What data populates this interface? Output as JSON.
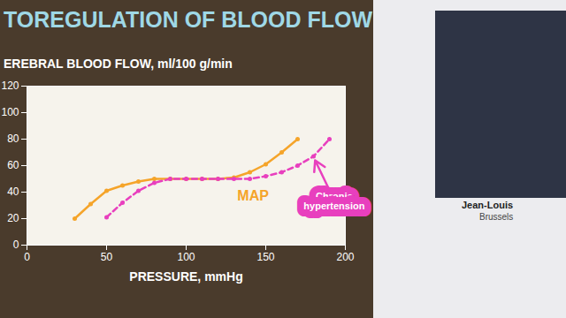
{
  "chart_data": {
    "type": "line",
    "title": "TOREGULATION OF BLOOD FLOW",
    "subtitle": "EREBRAL BLOOD FLOW, ml/100 g/min",
    "xlabel": "PRESSURE, mmHg",
    "xlim": [
      0,
      200
    ],
    "xticks": [
      0,
      50,
      100,
      150,
      200
    ],
    "ylim": [
      0,
      120
    ],
    "yticks": [
      0,
      20,
      40,
      60,
      80,
      100,
      120
    ],
    "grid": false,
    "series": [
      {
        "name": "MAP",
        "color": "#f5a42a",
        "marker": "circle",
        "line_style": "solid",
        "x": [
          30,
          40,
          50,
          60,
          70,
          80,
          90,
          100,
          110,
          120,
          130,
          140,
          150,
          160,
          170
        ],
        "values": [
          20,
          31,
          41,
          45,
          48,
          50,
          50,
          50,
          50,
          50,
          51,
          55,
          61,
          70,
          80
        ],
        "label": {
          "x": 142,
          "y": 37
        }
      },
      {
        "name": "Chronic hypertension",
        "color": "#e83fbe",
        "marker": "circle",
        "line_style": "dashed",
        "x": [
          50,
          60,
          70,
          80,
          90,
          100,
          110,
          120,
          130,
          140,
          150,
          160,
          170,
          180,
          190
        ],
        "values": [
          21,
          32,
          41,
          47,
          50,
          50,
          50,
          50,
          50,
          50,
          52,
          55,
          60,
          67,
          80
        ],
        "label": {
          "x": 193,
          "y": 33,
          "arrow_to": [
            181,
            64
          ]
        }
      }
    ]
  },
  "speaker": {
    "name": "Jean-Louis",
    "place": "Brussels"
  }
}
